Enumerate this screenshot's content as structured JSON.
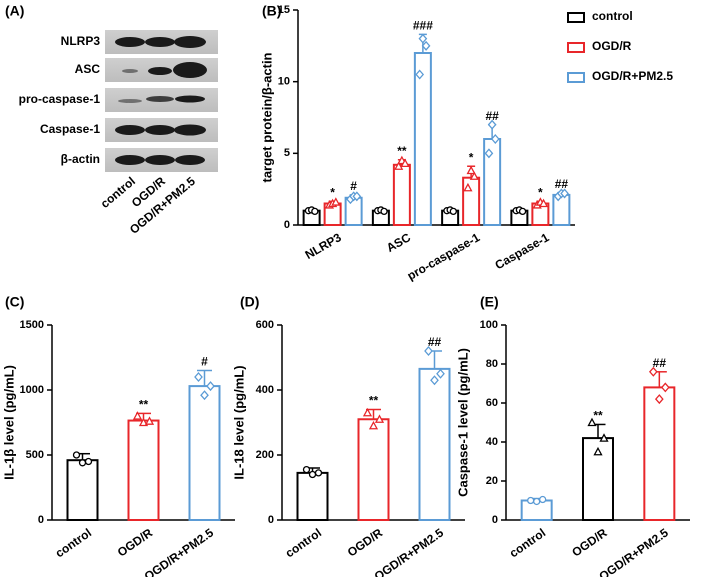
{
  "blot": {
    "panel_label": "(A)",
    "proteins": [
      "NLRP3",
      "ASC",
      "pro-caspase-1",
      "Caspase-1",
      "β-actin"
    ],
    "lanes": [
      "control",
      "OGD/R",
      "OGD/R+PM2.5"
    ]
  },
  "chart_data": [
    {
      "type": "grouped_bar",
      "panel_label": "(B)",
      "y_label": "target protein/β-actin",
      "categories": [
        "NLRP3",
        "ASC",
        "pro-caspase-1",
        "Caspase-1"
      ],
      "ylim": [
        0,
        15
      ],
      "yticks": [
        0,
        5,
        10,
        15
      ],
      "series": [
        {
          "name": "control",
          "color": "#000000",
          "values": [
            1,
            1,
            1,
            1
          ],
          "errors": [
            0.1,
            0.1,
            0.1,
            0.1
          ],
          "points": [
            [
              1.0,
              1.05,
              0.95
            ],
            [
              1.0,
              1.05,
              0.95
            ],
            [
              1.0,
              1.05,
              0.95
            ],
            [
              1.0,
              1.05,
              0.95
            ]
          ],
          "annotations": [
            null,
            null,
            null,
            null
          ]
        },
        {
          "name": "OGD/R",
          "color": "#e8262a",
          "values": [
            1.5,
            4.2,
            3.3,
            1.5
          ],
          "errors": [
            0.15,
            0.35,
            0.8,
            0.15
          ],
          "points": [
            [
              1.4,
              1.5,
              1.6
            ],
            [
              4.1,
              4.5,
              4.3
            ],
            [
              2.6,
              3.8,
              3.4
            ],
            [
              1.4,
              1.6,
              1.5
            ]
          ],
          "annotations": [
            "*",
            "**",
            "*",
            "*"
          ]
        },
        {
          "name": "OGD/R+PM2.5",
          "color": "#5b9bd5",
          "values": [
            1.9,
            12.0,
            6.0,
            2.1
          ],
          "errors": [
            0.2,
            1.3,
            1.0,
            0.15
          ],
          "points": [
            [
              1.8,
              2.0,
              2.0
            ],
            [
              10.5,
              13.0,
              12.5
            ],
            [
              5.0,
              7.0,
              6.0
            ],
            [
              2.0,
              2.2,
              2.2
            ]
          ],
          "annotations": [
            "#",
            "###",
            "##",
            "##"
          ]
        }
      ]
    },
    {
      "type": "bar",
      "panel_label": "(C)",
      "y_label": "IL-1β level (pg/mL)",
      "categories": [
        "control",
        "OGD/R",
        "OGD/R+PM2.5"
      ],
      "colors": [
        "#000000",
        "#e8262a",
        "#5b9bd5"
      ],
      "values": [
        460,
        765,
        1030
      ],
      "errors": [
        50,
        55,
        120
      ],
      "points": [
        [
          500,
          440,
          450
        ],
        [
          800,
          750,
          760
        ],
        [
          1100,
          960,
          1030
        ]
      ],
      "annotations": [
        null,
        "**",
        "#"
      ],
      "ylim": [
        0,
        1500
      ],
      "yticks": [
        0,
        500,
        1000,
        1500
      ]
    },
    {
      "type": "bar",
      "panel_label": "(D)",
      "y_label": "IL-18 level (pg/mL)",
      "categories": [
        "control",
        "OGD/R",
        "OGD/R+PM2.5"
      ],
      "colors": [
        "#000000",
        "#e8262a",
        "#5b9bd5"
      ],
      "values": [
        145,
        310,
        465
      ],
      "errors": [
        15,
        30,
        55
      ],
      "points": [
        [
          155,
          140,
          145
        ],
        [
          330,
          290,
          310
        ],
        [
          520,
          430,
          450
        ]
      ],
      "annotations": [
        null,
        "**",
        "##"
      ],
      "ylim": [
        0,
        600
      ],
      "yticks": [
        0,
        200,
        400,
        600
      ]
    },
    {
      "type": "bar",
      "panel_label": "(E)",
      "y_label": "Caspase-1 level (pg/mL)",
      "categories": [
        "control",
        "OGD/R",
        "OGD/R+PM2.5"
      ],
      "colors": [
        "#5b9bd5",
        "#000000",
        "#e8262a"
      ],
      "values": [
        10,
        42,
        68
      ],
      "errors": [
        1,
        7,
        8
      ],
      "points": [
        [
          10,
          9.5,
          10.5
        ],
        [
          50,
          35,
          42
        ],
        [
          76,
          62,
          68
        ]
      ],
      "annotations": [
        null,
        "**",
        "##"
      ],
      "ylim": [
        0,
        100
      ],
      "yticks": [
        0,
        20,
        40,
        60,
        80,
        100
      ]
    }
  ]
}
